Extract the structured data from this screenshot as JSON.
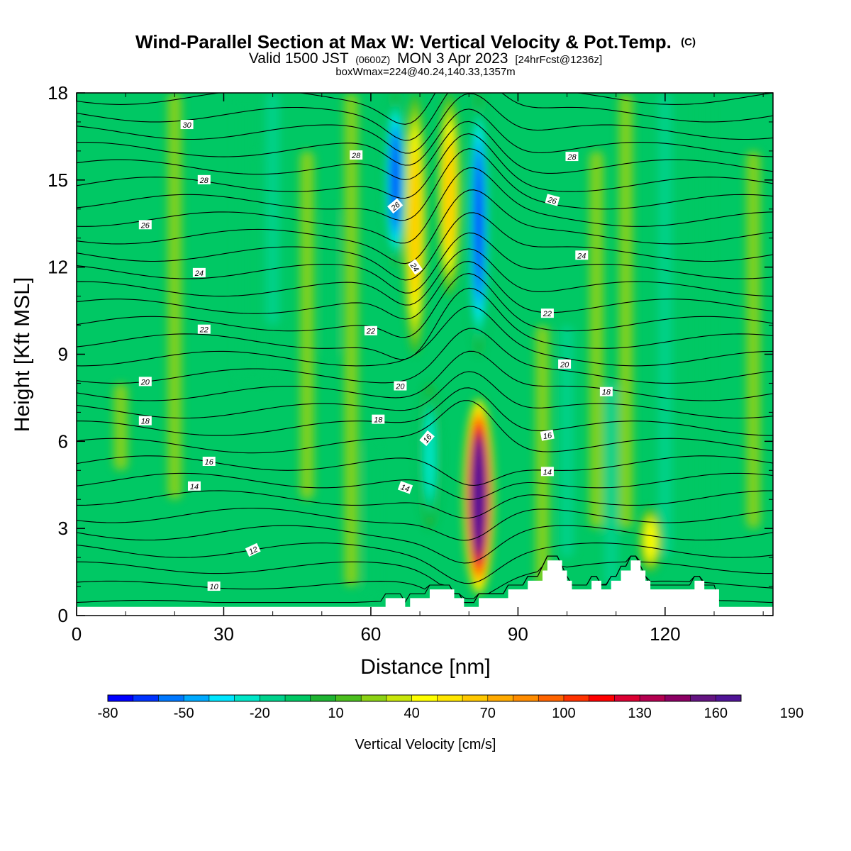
{
  "chart_data": {
    "type": "heatmap",
    "title": "Wind-Parallel Section at Max W: Vertical Velocity & Pot.Temp.",
    "title_mark": "(C)",
    "subtitle_parts": [
      "Valid 1500 JST",
      "(0600Z)",
      "MON 3 Apr 2023",
      "[24hrFcst@1236z]"
    ],
    "subtitle2": "boxWmax=224@40.24,140.33,1357m",
    "xlabel": "Distance [nm]",
    "ylabel": "Height [Kft MSL]",
    "xlim": [
      0,
      142
    ],
    "ylim": [
      0,
      18
    ],
    "x_ticks": [
      0,
      30,
      60,
      90,
      120
    ],
    "y_ticks": [
      0,
      3,
      6,
      9,
      12,
      15,
      18
    ],
    "grid": false,
    "colorbar": {
      "label": "Vertical Velocity [cm/s]",
      "min": -80,
      "step": 10,
      "tick_labels": [
        "-80",
        "-50",
        "-20",
        "10",
        "40",
        "70",
        "100",
        "130",
        "160",
        "190"
      ],
      "colors": [
        "#0000ff",
        "#0032ff",
        "#0078ff",
        "#00aaff",
        "#00e6ff",
        "#00e6c8",
        "#00d28c",
        "#00c864",
        "#1eb432",
        "#4bbe1e",
        "#8cd214",
        "#c8e60a",
        "#ffff00",
        "#ffe600",
        "#ffc800",
        "#ffaa00",
        "#ff8c00",
        "#ff6400",
        "#ff3200",
        "#ff0000",
        "#dc0032",
        "#b40050",
        "#8c0064",
        "#641482",
        "#501496"
      ]
    },
    "features": [
      {
        "name": "updraft-core",
        "x": 82,
        "ybottom": 0.7,
        "ytop": 7.5,
        "peak": 190
      },
      {
        "name": "upper-updraft-left",
        "x": 69,
        "ybottom": 9,
        "ytop": 18,
        "peak": 65
      },
      {
        "name": "upper-updraft-right",
        "x": 76,
        "ybottom": 11,
        "ytop": 18,
        "peak": 65
      },
      {
        "name": "downdraft-upper",
        "x": 65,
        "ybottom": 12,
        "ytop": 18,
        "peak": -70
      },
      {
        "name": "downdraft-lee",
        "x": 82,
        "ybottom": 9,
        "ytop": 18,
        "peak": -70
      },
      {
        "name": "downdraft-low",
        "x": 72,
        "ybottom": 3,
        "ytop": 8,
        "peak": -30
      },
      {
        "name": "minor-updraft",
        "x": 117,
        "ybottom": 1.5,
        "ytop": 3.7,
        "peak": 45
      }
    ],
    "terrain_kft": [
      [
        0,
        0.3
      ],
      [
        62,
        0.3
      ],
      [
        63,
        0.6
      ],
      [
        66,
        0.6
      ],
      [
        67,
        0.3
      ],
      [
        68,
        0.6
      ],
      [
        71,
        0.6
      ],
      [
        72,
        0.9
      ],
      [
        76,
        0.9
      ],
      [
        77,
        0.6
      ],
      [
        78,
        0.6
      ],
      [
        79,
        0.3
      ],
      [
        81,
        0.3
      ],
      [
        82,
        0.6
      ],
      [
        87,
        0.6
      ],
      [
        88,
        0.9
      ],
      [
        91,
        0.9
      ],
      [
        92,
        1.2
      ],
      [
        94,
        1.2
      ],
      [
        95,
        1.55
      ],
      [
        96,
        1.9
      ],
      [
        98,
        1.9
      ],
      [
        99,
        1.55
      ],
      [
        100,
        1.2
      ],
      [
        101,
        0.9
      ],
      [
        104,
        0.9
      ],
      [
        105,
        1.2
      ],
      [
        106,
        1.2
      ],
      [
        107,
        0.9
      ],
      [
        108,
        0.9
      ],
      [
        109,
        1.2
      ],
      [
        110,
        1.2
      ],
      [
        111,
        1.55
      ],
      [
        113,
        1.9
      ],
      [
        114,
        1.9
      ],
      [
        115,
        1.55
      ],
      [
        116,
        1.2
      ],
      [
        117,
        0.9
      ],
      [
        125,
        0.9
      ],
      [
        126,
        1.2
      ],
      [
        127,
        1.2
      ],
      [
        128,
        0.9
      ],
      [
        130,
        0.9
      ],
      [
        131,
        0.3
      ],
      [
        142,
        0.3
      ]
    ],
    "contour_labels": [
      {
        "text": "30",
        "x": 22.5,
        "y": 16.9,
        "angle": 0
      },
      {
        "text": "28",
        "x": 26,
        "y": 15.0,
        "angle": 0
      },
      {
        "text": "26",
        "x": 14,
        "y": 13.45,
        "angle": 0
      },
      {
        "text": "24",
        "x": 25,
        "y": 11.8,
        "angle": 0
      },
      {
        "text": "22",
        "x": 26,
        "y": 9.85,
        "angle": 0
      },
      {
        "text": "20",
        "x": 14,
        "y": 8.05,
        "angle": 0
      },
      {
        "text": "18",
        "x": 14,
        "y": 6.7,
        "angle": 0
      },
      {
        "text": "16",
        "x": 27,
        "y": 5.3,
        "angle": 0
      },
      {
        "text": "14",
        "x": 24,
        "y": 4.45,
        "angle": 0
      },
      {
        "text": "12",
        "x": 36,
        "y": 2.25,
        "angle": -25
      },
      {
        "text": "10",
        "x": 28,
        "y": 1.0,
        "angle": 0
      },
      {
        "text": "28",
        "x": 57,
        "y": 15.85,
        "angle": 0
      },
      {
        "text": "26",
        "x": 65,
        "y": 14.1,
        "angle": -40
      },
      {
        "text": "24",
        "x": 69,
        "y": 12.0,
        "angle": 55
      },
      {
        "text": "22",
        "x": 60,
        "y": 9.8,
        "angle": 0
      },
      {
        "text": "20",
        "x": 66,
        "y": 7.9,
        "angle": 0
      },
      {
        "text": "18",
        "x": 61.5,
        "y": 6.75,
        "angle": 0
      },
      {
        "text": "16",
        "x": 71.5,
        "y": 6.1,
        "angle": -50
      },
      {
        "text": "14",
        "x": 67,
        "y": 4.4,
        "angle": 20
      },
      {
        "text": "28",
        "x": 101,
        "y": 15.8,
        "angle": 0
      },
      {
        "text": "26",
        "x": 97,
        "y": 14.3,
        "angle": 15
      },
      {
        "text": "24",
        "x": 103,
        "y": 12.4,
        "angle": 0
      },
      {
        "text": "22",
        "x": 96,
        "y": 10.4,
        "angle": 0
      },
      {
        "text": "20",
        "x": 99.5,
        "y": 8.65,
        "angle": 0
      },
      {
        "text": "18",
        "x": 108,
        "y": 7.7,
        "angle": 0
      },
      {
        "text": "16",
        "x": 96,
        "y": 6.2,
        "angle": -10
      },
      {
        "text": "14",
        "x": 96,
        "y": 4.95,
        "angle": 0
      }
    ]
  }
}
